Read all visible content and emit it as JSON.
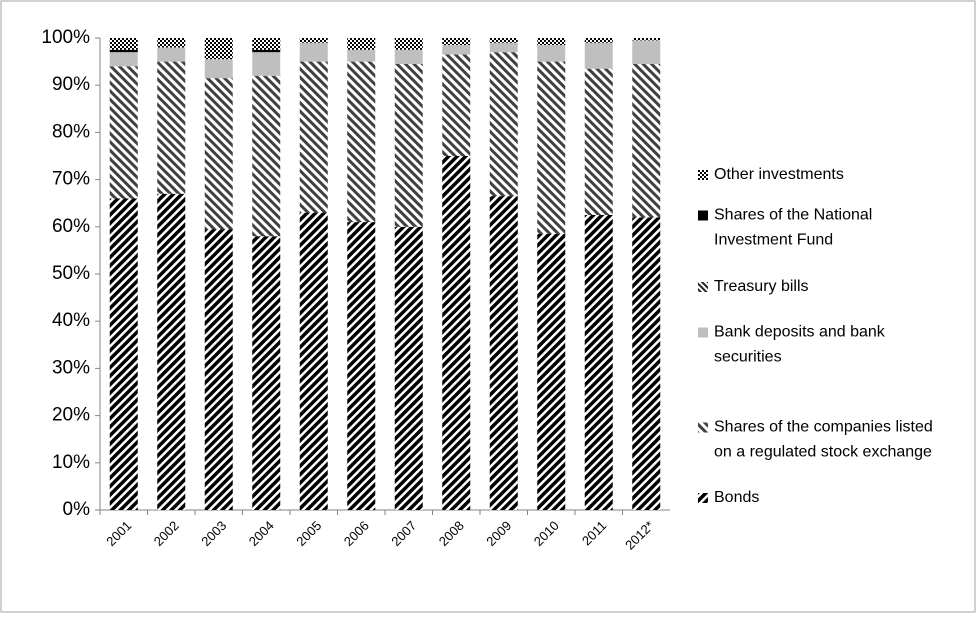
{
  "chart_data": {
    "type": "stacked_bar",
    "categories": [
      "2001",
      "2002",
      "2003",
      "2004",
      "2005",
      "2006",
      "2007",
      "2008",
      "2009",
      "2010",
      "2011",
      "2012*"
    ],
    "series": [
      {
        "name": "Bonds",
        "color": "#000000",
        "values": [
          66,
          67,
          59.5,
          58,
          63,
          61,
          60,
          75,
          66.5,
          58.5,
          62.5,
          62
        ]
      },
      {
        "name": "Shares of the companies listed on a regulated stock exchange",
        "color": "#404040",
        "values": [
          28,
          28,
          32,
          34,
          32,
          34,
          34.5,
          21.5,
          30.5,
          36.5,
          31,
          32.5
        ]
      },
      {
        "name": "Bank deposits and bank securities",
        "color": "#bfbfbf",
        "values": [
          3,
          3,
          4,
          5,
          4,
          2.5,
          3,
          2,
          2,
          3.5,
          5.5,
          5
        ]
      },
      {
        "name": "Treasury bills",
        "color": "#262626",
        "values": [
          0,
          0,
          0,
          0,
          0,
          0,
          0,
          0,
          0,
          0,
          0,
          0
        ]
      },
      {
        "name": "Shares of the National Investment Fund",
        "color": "#000000",
        "values": [
          0.5,
          0,
          0,
          0.5,
          0,
          0,
          0,
          0,
          0,
          0,
          0,
          0
        ]
      },
      {
        "name": "Other investments",
        "color": "#1a1a1a",
        "values": [
          2.5,
          2,
          4.5,
          2.5,
          1,
          2.5,
          2.5,
          1.5,
          1,
          1.5,
          1,
          0.5
        ]
      }
    ],
    "ylim": [
      0,
      100
    ],
    "yticks": [
      {
        "value": 0,
        "label": "0%"
      },
      {
        "value": 10,
        "label": "10%"
      },
      {
        "value": 20,
        "label": "20%"
      },
      {
        "value": 30,
        "label": "30%"
      },
      {
        "value": 40,
        "label": "40%"
      },
      {
        "value": 50,
        "label": "50%"
      },
      {
        "value": 60,
        "label": "60%"
      },
      {
        "value": 70,
        "label": "70%"
      },
      {
        "value": 80,
        "label": "80%"
      },
      {
        "value": 90,
        "label": "90%"
      },
      {
        "value": 100,
        "label": "100%"
      }
    ],
    "legend": "right"
  }
}
